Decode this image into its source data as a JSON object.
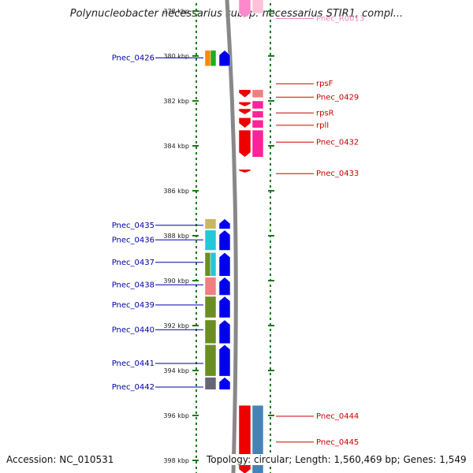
{
  "title": "Polynucleobacter necessarius subsp. necessarius STIR1, compl...",
  "footer": {
    "accession": "Accession: NC_010531",
    "topology": "Topology: circular; Length: 1,560,469 bp; Genes: 1,549"
  },
  "colors": {
    "left_label": "#0000aa",
    "right_label": "#cc0000",
    "rna_label": "#ee88bb",
    "tick": "#1a7a1a",
    "backbone": "#888888"
  },
  "axis": {
    "unit": "kbp",
    "labels": [
      {
        "kbp": 378,
        "text": "378 kbp"
      },
      {
        "kbp": 380,
        "text": "380 kbp"
      },
      {
        "kbp": 382,
        "text": "382 kbp"
      },
      {
        "kbp": 384,
        "text": "384 kbp"
      },
      {
        "kbp": 386,
        "text": "386 kbp"
      },
      {
        "kbp": 388,
        "text": "388 kbp"
      },
      {
        "kbp": 390,
        "text": "390 kbp"
      },
      {
        "kbp": 392,
        "text": "392 kbp"
      },
      {
        "kbp": 394,
        "text": "394 kbp"
      },
      {
        "kbp": 396,
        "text": "396 kbp"
      },
      {
        "kbp": 398,
        "text": "398 kbp"
      }
    ]
  },
  "left_labels": [
    {
      "text": "Pnec_0426",
      "kbp": 380.05
    },
    {
      "text": "Pnec_0435",
      "kbp": 387.5
    },
    {
      "text": "Pnec_0436",
      "kbp": 388.15
    },
    {
      "text": "Pnec_0437",
      "kbp": 389.15
    },
    {
      "text": "Pnec_0438",
      "kbp": 390.15
    },
    {
      "text": "Pnec_0439",
      "kbp": 391.05
    },
    {
      "text": "Pnec_0440",
      "kbp": 392.15
    },
    {
      "text": "Pnec_0441",
      "kbp": 393.65
    },
    {
      "text": "Pnec_0442",
      "kbp": 394.7
    }
  ],
  "right_labels": [
    {
      "text": "Pnec_R0013",
      "kbp": 378.3,
      "kind": "rna"
    },
    {
      "text": "rpsF",
      "kbp": 381.2,
      "kind": "gene"
    },
    {
      "text": "Pnec_0429",
      "kbp": 381.8,
      "kind": "gene"
    },
    {
      "text": "rpsR",
      "kbp": 382.5,
      "kind": "gene"
    },
    {
      "text": "rplI",
      "kbp": 383.05,
      "kind": "gene"
    },
    {
      "text": "Pnec_0432",
      "kbp": 383.8,
      "kind": "gene"
    },
    {
      "text": "Pnec_0433",
      "kbp": 385.2,
      "kind": "gene"
    },
    {
      "text": "Pnec_0444",
      "kbp": 396.0,
      "kind": "gene"
    },
    {
      "text": "Pnec_0445",
      "kbp": 397.15,
      "kind": "gene"
    }
  ],
  "features": [
    {
      "track": "right_arrow",
      "start": 377.2,
      "end": 378.3,
      "color": "#ff88cc",
      "dir": "down"
    },
    {
      "track": "right_cog",
      "start": 377.2,
      "end": 378.1,
      "color": "#ffc0d8"
    },
    {
      "track": "left_cog_a",
      "start": 379.75,
      "end": 380.45,
      "color": "#ff8800"
    },
    {
      "track": "left_cog_b",
      "start": 379.75,
      "end": 380.45,
      "color": "#22aa22"
    },
    {
      "track": "left_arrow",
      "start": 379.75,
      "end": 380.45,
      "color": "#0000ee",
      "dir": "up"
    },
    {
      "track": "right_arrow",
      "start": 381.5,
      "end": 381.85,
      "color": "#ee0000",
      "dir": "down"
    },
    {
      "track": "right_cog",
      "start": 381.5,
      "end": 381.85,
      "color": "#f08080"
    },
    {
      "track": "right_arrow",
      "start": 382.05,
      "end": 382.25,
      "color": "#ee0000",
      "dir": "down"
    },
    {
      "track": "right_cog",
      "start": 382.0,
      "end": 382.35,
      "color": "#ff2299"
    },
    {
      "track": "right_arrow",
      "start": 382.35,
      "end": 382.6,
      "color": "#ee0000",
      "dir": "down"
    },
    {
      "track": "right_cog",
      "start": 382.45,
      "end": 382.75,
      "color": "#ff2299"
    },
    {
      "track": "right_arrow",
      "start": 382.75,
      "end": 383.2,
      "color": "#ee0000",
      "dir": "down"
    },
    {
      "track": "right_cog",
      "start": 382.85,
      "end": 383.2,
      "color": "#ff2299"
    },
    {
      "track": "right_arrow",
      "start": 383.3,
      "end": 384.5,
      "color": "#ee0000",
      "dir": "down"
    },
    {
      "track": "right_cog",
      "start": 383.3,
      "end": 384.5,
      "color": "#ff2299"
    },
    {
      "track": "right_arrow",
      "start": 385.05,
      "end": 385.2,
      "color": "#ee0000",
      "dir": "down"
    },
    {
      "track": "left_cog_full",
      "start": 387.25,
      "end": 387.7,
      "color": "#c8b860"
    },
    {
      "track": "left_arrow",
      "start": 387.25,
      "end": 387.7,
      "color": "#0000ee",
      "dir": "up"
    },
    {
      "track": "left_cog_full",
      "start": 387.75,
      "end": 388.65,
      "color": "#22c8d8"
    },
    {
      "track": "left_arrow",
      "start": 387.75,
      "end": 388.65,
      "color": "#0000ee",
      "dir": "up"
    },
    {
      "track": "left_cog_a",
      "start": 388.75,
      "end": 389.8,
      "color": "#6b8e23"
    },
    {
      "track": "left_cog_b",
      "start": 388.75,
      "end": 389.8,
      "color": "#22c8d8"
    },
    {
      "track": "left_arrow",
      "start": 388.75,
      "end": 389.8,
      "color": "#0000ee",
      "dir": "up"
    },
    {
      "track": "left_cog_full",
      "start": 389.85,
      "end": 390.65,
      "color": "#f08080"
    },
    {
      "track": "left_arrow",
      "start": 389.85,
      "end": 390.65,
      "color": "#0000ee",
      "dir": "up"
    },
    {
      "track": "left_cog_full",
      "start": 390.7,
      "end": 391.65,
      "color": "#6b8e23"
    },
    {
      "track": "left_arrow",
      "start": 390.7,
      "end": 391.65,
      "color": "#0000ee",
      "dir": "up"
    },
    {
      "track": "left_cog_full",
      "start": 391.75,
      "end": 392.8,
      "color": "#6b8e23"
    },
    {
      "track": "left_arrow",
      "start": 391.75,
      "end": 392.8,
      "color": "#0000ee",
      "dir": "up"
    },
    {
      "track": "left_cog_full",
      "start": 392.85,
      "end": 394.25,
      "color": "#6b8e23"
    },
    {
      "track": "left_arrow",
      "start": 392.85,
      "end": 394.25,
      "color": "#0000ee",
      "dir": "up"
    },
    {
      "track": "left_cog_full",
      "start": 394.3,
      "end": 394.85,
      "color": "#666677"
    },
    {
      "track": "left_arrow",
      "start": 394.3,
      "end": 394.85,
      "color": "#0000ee",
      "dir": "up"
    },
    {
      "track": "right_arrow",
      "start": 395.55,
      "end": 398.6,
      "color": "#ee0000",
      "dir": "down"
    },
    {
      "track": "right_cog",
      "start": 395.55,
      "end": 398.6,
      "color": "#4682b4"
    }
  ]
}
